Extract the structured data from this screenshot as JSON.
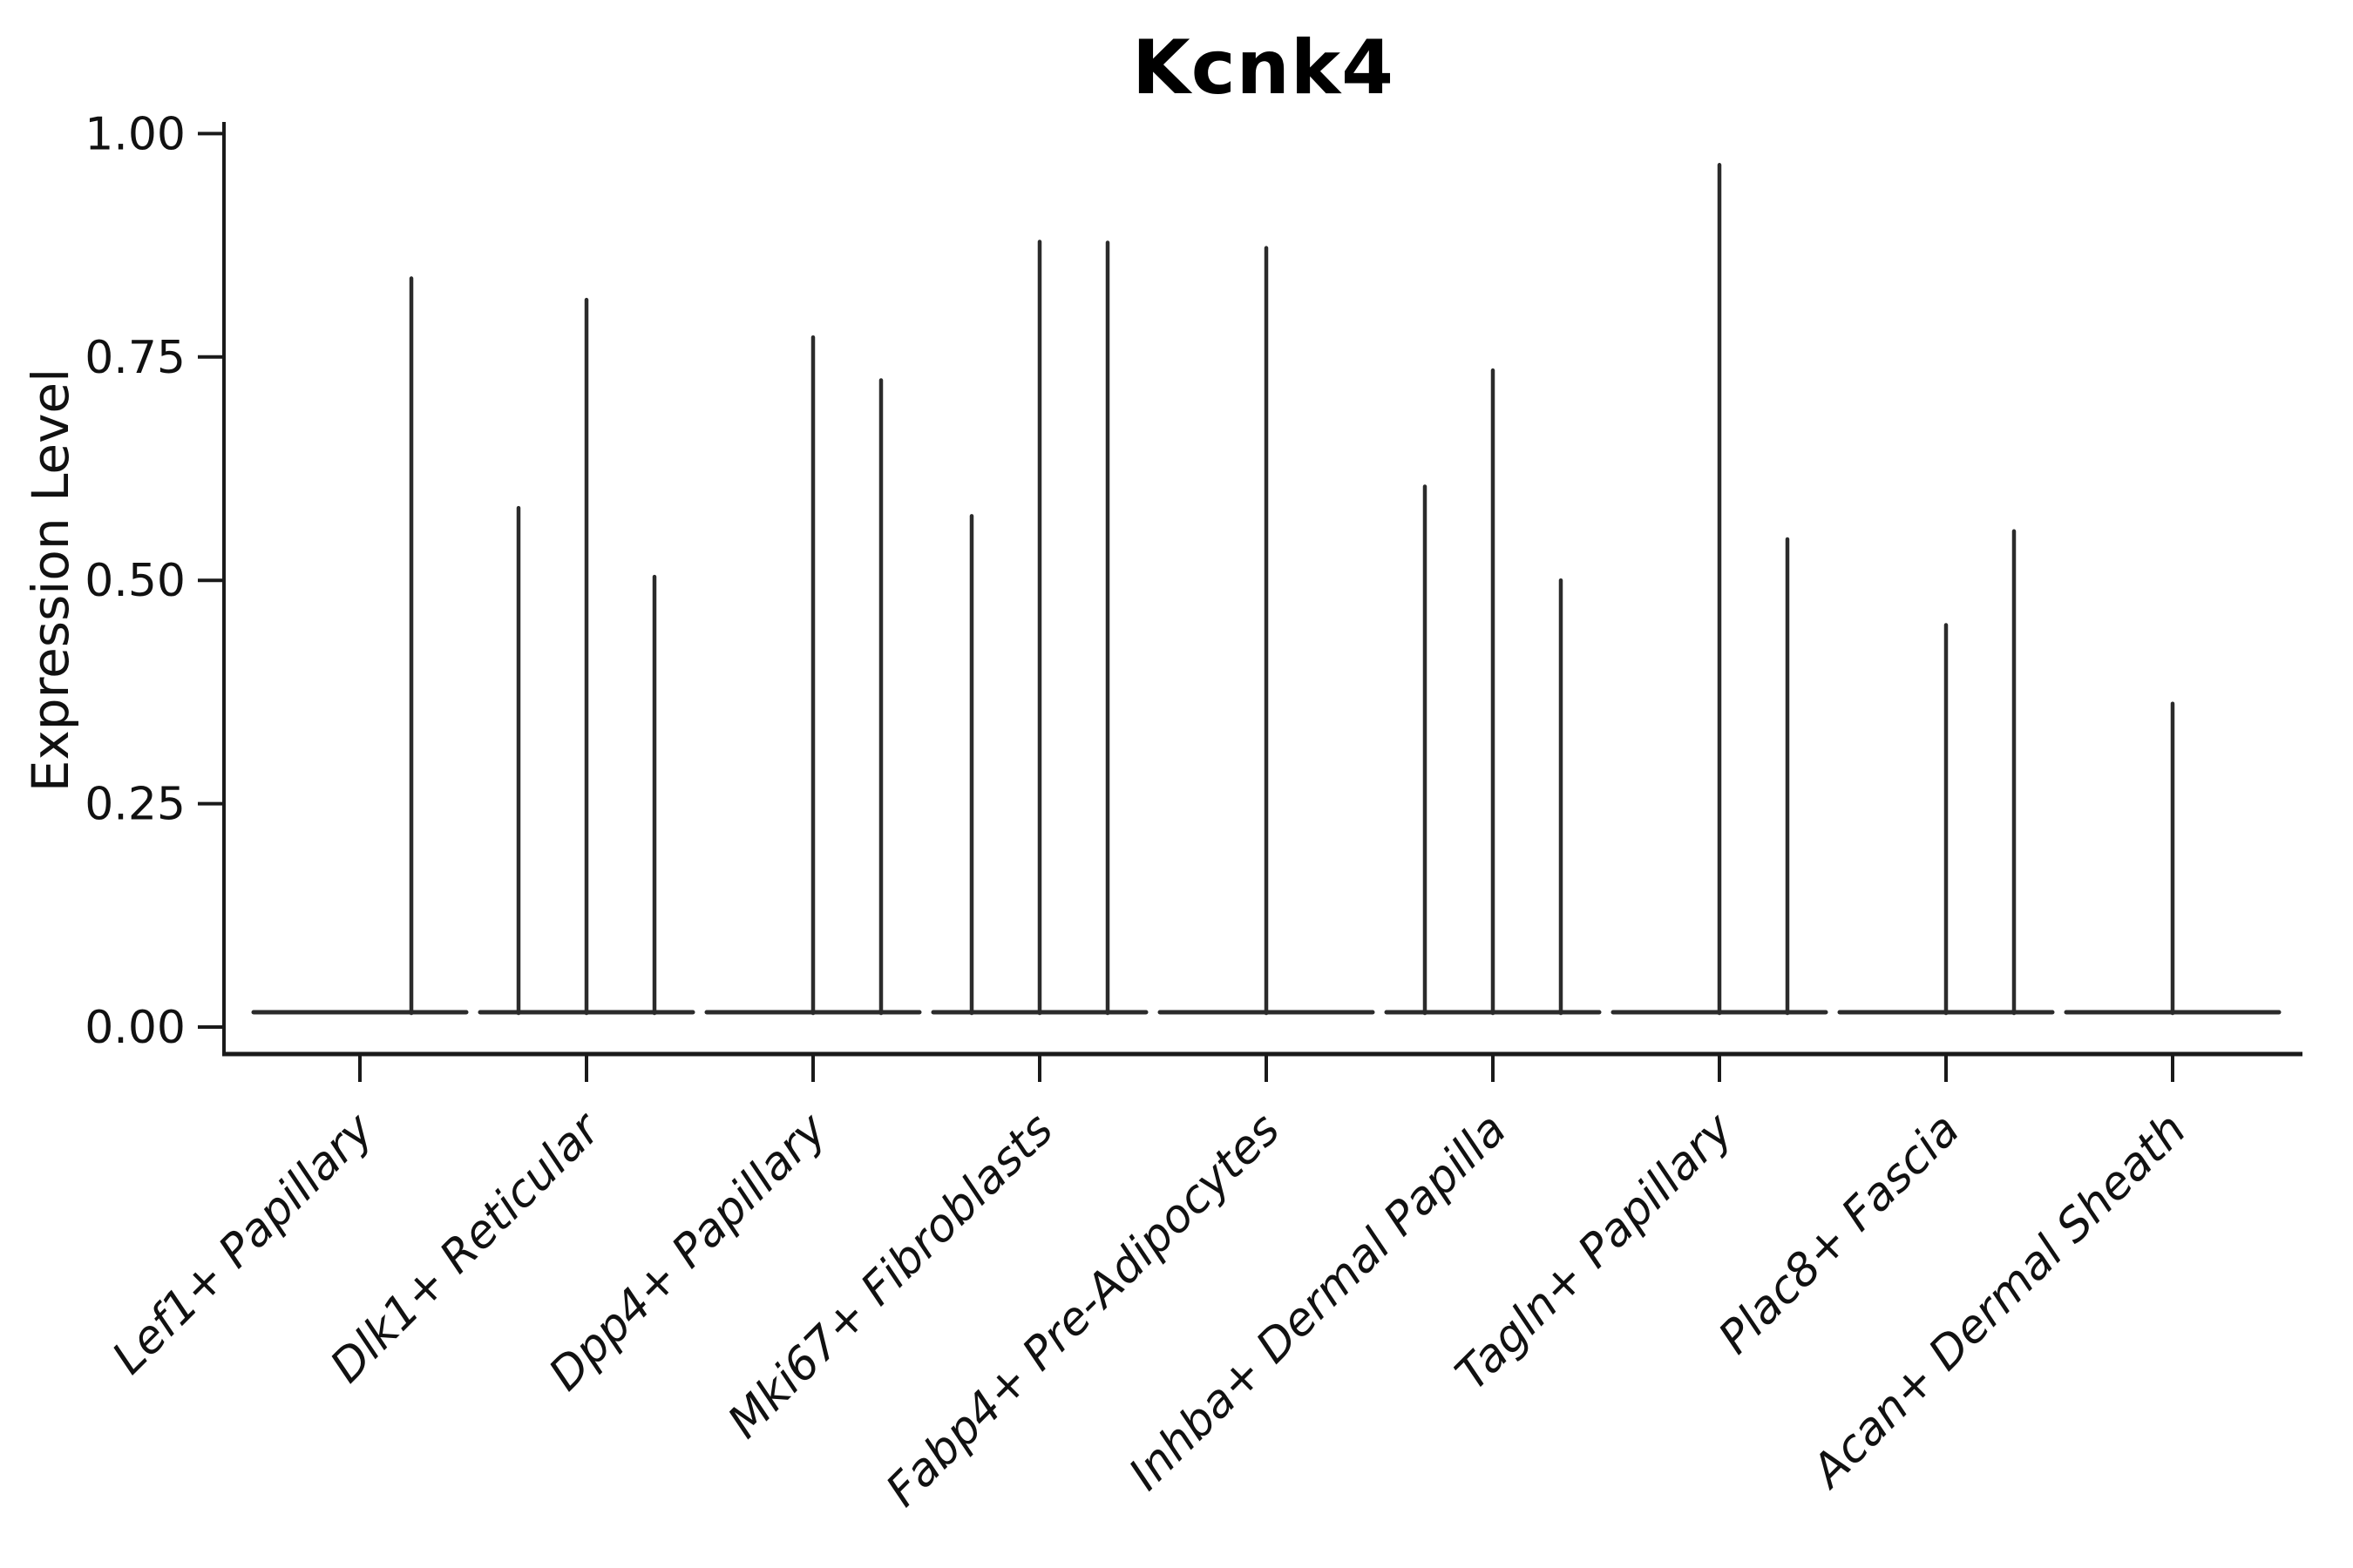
{
  "chart_data": {
    "type": "violin",
    "title": "Kcnk4",
    "ylabel": "Expression Level",
    "ylim": [
      0,
      1
    ],
    "grid": false,
    "legend": "none",
    "background": "#ffffff",
    "ytick_labels": [
      "1.00",
      "0.75",
      "0.50",
      "0.25",
      "0.00"
    ],
    "ytick_values": [
      1.0,
      0.75,
      0.5,
      0.25,
      0.0
    ],
    "categories": [
      "Lef1+ Papillary",
      "Dlk1+ Reticular",
      "Dpp4+ Papillary",
      "Mki67+ Fibroblasts",
      "Fabp4+ Pre-Adipocytes",
      "Inhba+ Dermal Papilla",
      "Tagln+ Papillary",
      "Plac8+ Fascia",
      "Acan+ Dermal Sheath"
    ],
    "series": [
      {
        "name": "Lef1+ Papillary",
        "baseline_value": 0,
        "spikes": [
          {
            "dx": 0.227,
            "value": 0.838
          }
        ]
      },
      {
        "name": "Dlk1+ Reticular",
        "baseline_value": 0,
        "spikes": [
          {
            "dx": -0.3,
            "value": 0.581
          },
          {
            "dx": 0.0,
            "value": 0.814
          },
          {
            "dx": 0.3,
            "value": 0.504
          }
        ]
      },
      {
        "name": "Dpp4+ Papillary",
        "baseline_value": 0,
        "spikes": [
          {
            "dx": 0.0,
            "value": 0.772
          },
          {
            "dx": 0.3,
            "value": 0.724
          }
        ]
      },
      {
        "name": "Mki67+ Fibroblasts",
        "baseline_value": 0,
        "spikes": [
          {
            "dx": -0.3,
            "value": 0.572
          },
          {
            "dx": 0.0,
            "value": 0.879
          },
          {
            "dx": 0.3,
            "value": 0.878
          }
        ]
      },
      {
        "name": "Fabp4+ Pre-Adipocytes",
        "baseline_value": 0,
        "spikes": [
          {
            "dx": 0.0,
            "value": 0.872
          }
        ]
      },
      {
        "name": "Inhba+ Dermal Papilla",
        "baseline_value": 0,
        "spikes": [
          {
            "dx": -0.3,
            "value": 0.605
          },
          {
            "dx": 0.0,
            "value": 0.735
          },
          {
            "dx": 0.3,
            "value": 0.5
          }
        ]
      },
      {
        "name": "Tagln+ Papillary",
        "baseline_value": 0,
        "spikes": [
          {
            "dx": 0.0,
            "value": 0.965
          },
          {
            "dx": 0.3,
            "value": 0.546
          }
        ]
      },
      {
        "name": "Plac8+ Fascia",
        "baseline_value": 0,
        "spikes": [
          {
            "dx": 0.0,
            "value": 0.45
          },
          {
            "dx": 0.3,
            "value": 0.555
          }
        ]
      },
      {
        "name": "Acan+ Dermal Sheath",
        "baseline_value": 0,
        "spikes": [
          {
            "dx": 0.0,
            "value": 0.362
          }
        ]
      }
    ]
  },
  "colors": {
    "violin": "#2b2b2b",
    "axis": "#1a1a1a",
    "text": "#111111",
    "background": "#ffffff"
  }
}
